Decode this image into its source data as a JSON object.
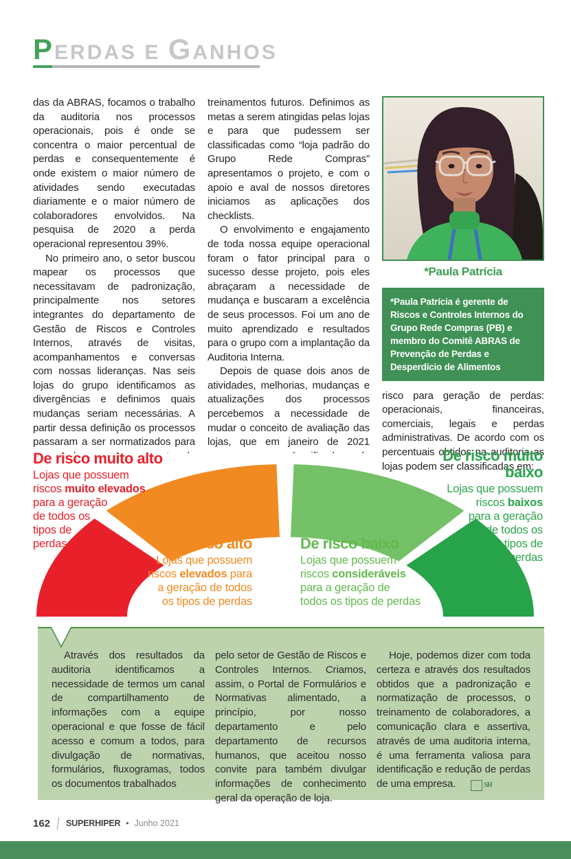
{
  "header": {
    "lead1": "P",
    "rest1": "ERDAS E ",
    "lead2": "G",
    "rest2": "ANHOS"
  },
  "article": {
    "col1": {
      "p1": "das da ABRAS, focamos o trabalho da auditoria nos processos operacionais, pois é onde se concentra o maior percentual de perdas e consequentemente é onde existem o maior número de atividades sendo executadas diariamente e o maior número de colaboradores envolvidos. Na pesquisa de 2020 a perda operacional representou 39%.",
      "p2": "No primeiro ano, o setor buscou mapear os processos que necessitavam de padronização, principalmente nos setores integrantes do departamento de Gestão de Riscos e Controles Internos, através de visitas, acompanhamentos e conversas com nossas lideranças. Nas seis lojas do grupo identificamos as divergências e definimos quais mudanças seriam necessárias. A partir dessa definição os processos passaram a ser normatizados para que pudessem ser o norte da auditoria, fonte de pesquisas e"
    },
    "col2": {
      "p1": "treinamentos futuros. Definimos as metas a serem atingidas pelas lojas e para que pudessem ser classificadas como “loja padrão do Grupo Rede Compras” apresentamos o projeto, e com o apoio e aval de nossos diretores iniciamos as aplicações dos checklists.",
      "p2": "O envolvimento e engajamento de toda nossa equipe operacional foram o fator principal para o sucesso desse projeto, pois eles abraçaram a necessidade de mudança e buscaram a excelência de seus processos. Foi um ano de muito aprendizado e resultados para o grupo com a implantação da Auditoria Interna.",
      "p3": "Depois de quase dois anos de atividades, melhorias, mudanças e atualizações dos processos percebemos a necessidade de mudar o conceito de avaliação das lojas, que em janeiro de 2021 passaram a ser classificadas pelo nível de"
    },
    "col3": {
      "photo_caption": "*Paula Patrícia",
      "bio": "*Paula Patrícia é gerente de Riscos e Controles Internos do Grupo Rede Compras (PB) e membro do Comitê ABRAS de Prevenção de Perdas e Desperdício de Alimentos",
      "p1": "risco para geração de perdas: operacionais, financeiras, comerciais, legais e perdas administrativas. De acordo com os percentuais obtidos na auditoria as lojas podem ser classificadas em:"
    }
  },
  "gauge": {
    "levels": [
      {
        "id": "muito-alto",
        "title": "De risco muito alto",
        "color": "#e8202a",
        "desc": [
          {
            "t": "Lojas que possuem\nriscos ",
            "b": false
          },
          {
            "t": "muito elevados",
            "b": true
          },
          {
            "t": "\npara a geração\nde todos os\ntipos de\nperdas",
            "b": false
          }
        ]
      },
      {
        "id": "alto",
        "title": "De risco alto",
        "color": "#f18b21",
        "desc": [
          {
            "t": "Lojas que possuem\nriscos ",
            "b": false
          },
          {
            "t": "elevados",
            "b": true
          },
          {
            "t": " para\na geração de todos\nos tipos de perdas",
            "b": false
          }
        ]
      },
      {
        "id": "baixo",
        "title": "De risco baixo",
        "color": "#62b94e",
        "desc": [
          {
            "t": "Lojas que possuem\nriscos ",
            "b": false
          },
          {
            "t": "consideráveis",
            "b": true
          },
          {
            "t": "\npara a geração de\ntodos os tipos de perdas",
            "b": false
          }
        ]
      },
      {
        "id": "muito-baixo",
        "title": "De risco muito baixo",
        "color": "#2ba44c",
        "desc": [
          {
            "t": "Lojas que possuem\nriscos ",
            "b": false
          },
          {
            "t": "baixos",
            "b": true
          },
          {
            "t": "\npara a geração\nde todos os\ntipos de\nperdas",
            "b": false
          }
        ]
      }
    ],
    "segment_colors": {
      "muito_alto": "#e8202a",
      "alto": "#f18b21",
      "baixo": "#74c167",
      "muito_baixo": "#27a349"
    }
  },
  "callout": {
    "col1": "Através dos resultados da auditoria identificamos a necessidade de termos um canal de compartilhamento de informações com a equipe operacional e que fosse de fácil acesso e comum a todos, para divulgação de normativas, formulários, fluxogramas, todos os documentos trabalhados",
    "col2": "pelo setor de Gestão de Riscos e Controles Internos. Criamos, assim, o Portal de Formulários e Normativas alimentado, a princípio, por nosso departamento e pelo departamento de recursos humanos, que aceitou nosso convite para também divulgar informações de conhecimento geral da operação de loja.",
    "col3": "Hoje, podemos dizer com toda certeza e através dos resultados obtidos que a padronização e normatização de processos, o treinamento de colaboradores, a comunicação clara e assertiva, através de uma auditoria interna, é uma ferramenta valiosa para identificação e redução de perdas de uma empresa.",
    "endmark": "SH"
  },
  "footer": {
    "page_number": "162",
    "magazine": "SUPERHIPER",
    "bullet": "•",
    "issue": "Junho 2021"
  }
}
